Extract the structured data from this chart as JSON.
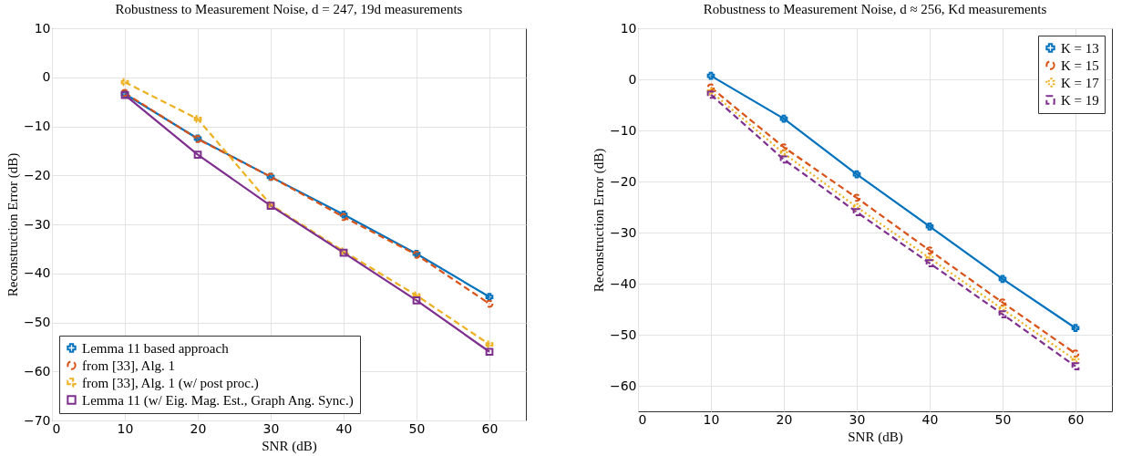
{
  "chart_data": [
    {
      "type": "line",
      "title": "Robustness to Measurement Noise, d = 247, 19d measurements",
      "xlabel": "SNR (dB)",
      "ylabel": "Reconstruction Error (dB)",
      "x": [
        10,
        20,
        30,
        40,
        50,
        60
      ],
      "xlim": [
        0,
        65
      ],
      "xticks": [
        0,
        10,
        20,
        30,
        40,
        50,
        60
      ],
      "ylim": [
        -70,
        10
      ],
      "yticks": [
        -70,
        -60,
        -50,
        -40,
        -30,
        -20,
        -10,
        0,
        10
      ],
      "grid": true,
      "legend": "bottom left",
      "series": [
        {
          "name": "Lemma 11 based approach",
          "color": "#0072bd",
          "marker": "cross",
          "line_style": "solid",
          "values": [
            -3.4,
            -12.5,
            -20.3,
            -28,
            -36,
            -44.8
          ]
        },
        {
          "name": "from [33], Alg. 1",
          "color": "#d95319",
          "marker": "circle",
          "line_style": "dashed",
          "values": [
            -3.2,
            -12.6,
            -20.3,
            -28.5,
            -36.2,
            -46.2
          ]
        },
        {
          "name": "from [33], Alg. 1 (w/ post proc.)",
          "color": "#edb120",
          "marker": "cross",
          "line_style": "dashed",
          "values": [
            -1,
            -8.5,
            -26,
            -35.5,
            -44.5,
            -54.5
          ]
        },
        {
          "name": "Lemma 11 (w/ Eig. Mag. Est., Graph Ang. Sync.)",
          "color": "#7e2f8e",
          "marker": "square",
          "line_style": "solid",
          "values": [
            -3.6,
            -15.8,
            -26.2,
            -35.8,
            -45.5,
            -56
          ]
        }
      ]
    },
    {
      "type": "line",
      "title": "Robustness to Measurement Noise, d ≈ 256, Kd measurements",
      "xlabel": "SNR (dB)",
      "ylabel": "Reconstruction Error (dB)",
      "x": [
        10,
        20,
        30,
        40,
        50,
        60
      ],
      "xlim": [
        0,
        65
      ],
      "xticks": [
        0,
        10,
        20,
        30,
        40,
        50,
        60
      ],
      "ylim": [
        -65,
        10
      ],
      "yticks": [
        -60,
        -50,
        -40,
        -30,
        -20,
        -10,
        0,
        10
      ],
      "grid": true,
      "legend": "top right",
      "series": [
        {
          "name": "K = 13",
          "color": "#0072bd",
          "marker": "cross",
          "line_style": "solid",
          "values": [
            0.7,
            -7.7,
            -18.6,
            -28.8,
            -39.1,
            -48.7
          ]
        },
        {
          "name": "K = 15",
          "color": "#d95319",
          "marker": "circle",
          "line_style": "dashed",
          "values": [
            -1.6,
            -13.3,
            -23.2,
            -33.5,
            -43.7,
            -53.7
          ]
        },
        {
          "name": "K = 17",
          "color": "#edb120",
          "marker": "cross",
          "line_style": "dotted",
          "values": [
            -2.4,
            -14.5,
            -25,
            -35,
            -45,
            -55
          ]
        },
        {
          "name": "K = 19",
          "color": "#7e2f8e",
          "marker": "square",
          "line_style": "dashed",
          "values": [
            -3,
            -15.7,
            -26,
            -36,
            -46,
            -56.2
          ]
        }
      ]
    }
  ]
}
